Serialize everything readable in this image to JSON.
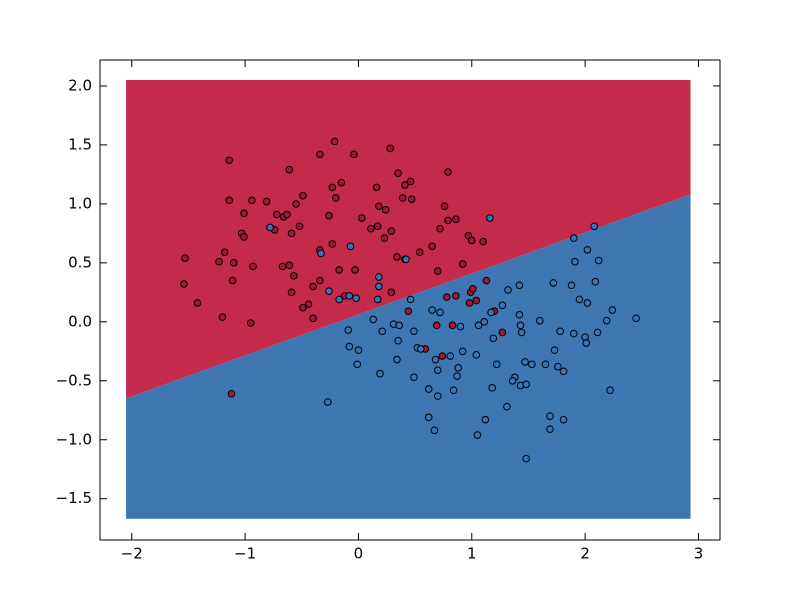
{
  "chart_data": {
    "type": "scatter",
    "xlim": [
      -2.28,
      3.19
    ],
    "ylim": [
      -1.85,
      2.22
    ],
    "xticks": [
      {
        "value": -2,
        "label": "−2"
      },
      {
        "value": -1,
        "label": "−1"
      },
      0,
      1,
      2,
      3
    ],
    "yticks": [
      {
        "value": -1.5,
        "label": "−1.5"
      },
      {
        "value": -1.0,
        "label": "−1.0"
      },
      {
        "value": -0.5,
        "label": "−0.5"
      },
      {
        "value": 0,
        "label": "0.0"
      },
      {
        "value": 0.5,
        "label": "0.5"
      },
      {
        "value": 1.0,
        "label": "1.0"
      },
      {
        "value": 1.5,
        "label": "1.5"
      },
      {
        "value": 2.0,
        "label": "2.0"
      }
    ],
    "region_x": [
      -2.05,
      2.93
    ],
    "region_y": [
      -1.67,
      2.05
    ],
    "boundary_y": [
      -0.65,
      1.08
    ],
    "region_colors": [
      "#c42a4a",
      "#3e76b2"
    ],
    "series": [
      {
        "color": "#a3163a",
        "x": [
          -1.53,
          -1.54,
          -1.42,
          -1.14,
          -1.14,
          -1.18,
          -1.23,
          -1.1,
          -1.11,
          -1.2,
          -0.95,
          -0.93,
          -1.01,
          -1.03,
          -1.01,
          -0.94,
          -0.81,
          -0.72,
          -0.66,
          -0.61,
          -0.55,
          -0.52,
          -0.59,
          -0.49,
          -0.63,
          -0.74,
          -0.67,
          -0.61,
          -0.57,
          -0.59,
          -0.49,
          -0.44,
          -0.4,
          -0.4,
          -0.34,
          -0.34,
          -0.21,
          -0.26,
          -0.23,
          -0.15,
          -0.2,
          -0.23,
          -0.34,
          -0.17,
          -0.12,
          -0.04,
          0.03,
          -0.03,
          0.16,
          0.18,
          0.17,
          0.11,
          0.28,
          0.24,
          0.23,
          0.29,
          0.35,
          0.41,
          0.46,
          0.39,
          0.47,
          0.34,
          0.29,
          0.41,
          0.54,
          0.65,
          0.79,
          0.76,
          0.72,
          0.79,
          0.7,
          0.86,
          0.97,
          1.0,
          1.1,
          0.92,
          0.78,
          0.86,
          0.99,
          1.04,
          0.98,
          1.13,
          1.01,
          1.2,
          0.69,
          0.83,
          0.74,
          0.44,
          0.59,
          1.27,
          -1.12
        ],
        "y": [
          0.54,
          0.32,
          0.16,
          1.37,
          1.03,
          0.59,
          0.51,
          0.5,
          0.35,
          0.04,
          -0.01,
          0.47,
          0.92,
          0.75,
          0.72,
          1.03,
          1.02,
          0.91,
          0.89,
          1.29,
          1.0,
          0.81,
          0.75,
          1.07,
          0.91,
          0.78,
          0.47,
          0.48,
          0.39,
          0.25,
          0.12,
          0.15,
          0.3,
          0.03,
          0.35,
          1.42,
          1.53,
          0.9,
          1.14,
          1.18,
          1.05,
          0.66,
          0.61,
          0.44,
          0.22,
          1.42,
          0.88,
          0.44,
          1.14,
          0.98,
          0.81,
          0.79,
          1.47,
          0.95,
          0.71,
          0.77,
          1.26,
          1.16,
          1.19,
          1.05,
          1.04,
          0.55,
          0.25,
          0.53,
          0.59,
          0.64,
          1.27,
          0.98,
          0.79,
          0.86,
          0.43,
          0.87,
          0.73,
          0.69,
          0.68,
          0.49,
          0.21,
          0.22,
          0.25,
          0.18,
          0.16,
          0.35,
          0.28,
          0.09,
          -0.03,
          -0.03,
          -0.29,
          0.09,
          -0.23,
          -0.09,
          -0.61
        ]
      },
      {
        "color": "#3a74b6",
        "x": [
          -0.78,
          -0.33,
          -0.26,
          -0.17,
          -0.08,
          -0.07,
          -0.02,
          0.18,
          0.18,
          0.42,
          1.16,
          0.17,
          0.13,
          -0.09,
          -0.08,
          0.0,
          -0.01,
          0.19,
          0.21,
          0.31,
          0.36,
          0.35,
          0.34,
          0.46,
          0.49,
          0.52,
          0.49,
          0.62,
          0.55,
          0.65,
          0.72,
          0.68,
          0.7,
          0.81,
          0.88,
          0.87,
          0.84,
          0.7,
          0.62,
          0.67,
          0.9,
          0.92,
          1.04,
          1.06,
          1.11,
          1.17,
          1.19,
          1.18,
          1.22,
          1.05,
          1.12,
          1.27,
          1.32,
          1.42,
          1.42,
          1.43,
          1.44,
          1.47,
          1.43,
          1.48,
          1.38,
          1.36,
          1.31,
          1.48,
          1.6,
          1.53,
          1.65,
          1.72,
          1.73,
          1.78,
          1.81,
          1.76,
          1.69,
          1.69,
          1.81,
          1.88,
          1.95,
          1.9,
          1.91,
          1.9,
          2.02,
          2.09,
          2.02,
          2.0,
          2.01,
          2.08,
          2.12,
          2.11,
          2.19,
          2.24,
          2.22,
          2.45,
          -0.27
        ],
        "y": [
          0.8,
          0.58,
          0.26,
          0.19,
          0.22,
          0.64,
          0.2,
          0.3,
          0.38,
          0.53,
          0.88,
          0.19,
          0.02,
          -0.07,
          -0.21,
          -0.24,
          -0.36,
          -0.44,
          -0.08,
          -0.02,
          -0.03,
          -0.16,
          -0.32,
          0.19,
          -0.08,
          -0.22,
          -0.47,
          -0.57,
          -0.23,
          0.1,
          0.08,
          -0.32,
          -0.41,
          -0.29,
          -0.39,
          -0.46,
          -0.58,
          -0.63,
          -0.81,
          -0.92,
          -0.04,
          -0.25,
          -0.28,
          -0.03,
          0.0,
          0.08,
          -0.14,
          -0.56,
          -0.36,
          -0.96,
          -0.83,
          0.14,
          0.27,
          0.31,
          0.06,
          -0.03,
          -0.09,
          -0.34,
          -0.54,
          -0.53,
          -0.47,
          -0.5,
          -0.72,
          -1.16,
          0.01,
          -0.36,
          -0.36,
          0.33,
          -0.24,
          -0.08,
          -0.42,
          -0.38,
          -0.8,
          -0.91,
          -0.83,
          0.31,
          0.19,
          -0.1,
          0.51,
          0.71,
          0.61,
          0.34,
          0.16,
          -0.13,
          -0.18,
          0.81,
          0.52,
          -0.09,
          0.01,
          0.1,
          -0.58,
          0.03,
          -0.68
        ]
      }
    ]
  }
}
